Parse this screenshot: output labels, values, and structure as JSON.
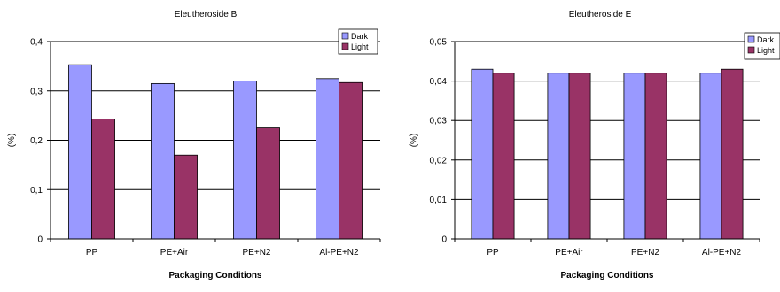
{
  "chart_data": [
    {
      "type": "bar",
      "title": "Eleutheroside B",
      "xlabel": "Packaging Conditions",
      "ylabel": "(%)",
      "categories": [
        "PP",
        "PE+Air",
        "PE+N2",
        "Al-PE+N2"
      ],
      "ylim": [
        0,
        0.4
      ],
      "yticks": [
        "0",
        "0,1",
        "0,2",
        "0,3",
        "0,4"
      ],
      "grid": true,
      "legend_position": "top-right",
      "series": [
        {
          "name": "Dark",
          "color": "#9999ff",
          "values": [
            0.353,
            0.315,
            0.32,
            0.325
          ]
        },
        {
          "name": "Light",
          "color": "#993366",
          "values": [
            0.243,
            0.17,
            0.225,
            0.317
          ]
        }
      ]
    },
    {
      "type": "bar",
      "title": "Eleutheroside E",
      "xlabel": "Packaging Conditions",
      "ylabel": "(%)",
      "categories": [
        "PP",
        "PE+Air",
        "PE+N2",
        "Al-PE+N2"
      ],
      "ylim": [
        0,
        0.05
      ],
      "yticks": [
        "0",
        "0,01",
        "0,02",
        "0,03",
        "0,04",
        "0,05"
      ],
      "grid": true,
      "legend_position": "top-right",
      "series": [
        {
          "name": "Dark",
          "color": "#9999ff",
          "values": [
            0.043,
            0.042,
            0.042,
            0.042
          ]
        },
        {
          "name": "Light",
          "color": "#993366",
          "values": [
            0.042,
            0.042,
            0.042,
            0.043
          ]
        }
      ]
    }
  ]
}
